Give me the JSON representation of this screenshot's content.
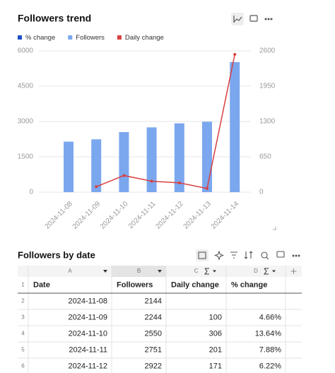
{
  "chart_data": {
    "type": "bar",
    "title": "Followers trend",
    "categories": [
      "2024-11-08",
      "2024-11-09",
      "2024-11-10",
      "2024-11-11",
      "2024-11-12",
      "2024-11-13",
      "2024-11-14"
    ],
    "series": [
      {
        "name": "% change",
        "color": "#1f4fc4",
        "values": [
          null,
          null,
          null,
          null,
          null,
          null,
          null
        ]
      },
      {
        "name": "Followers",
        "color": "#7ba7ee",
        "values": [
          2144,
          2244,
          2550,
          2751,
          2922,
          2990,
          5525
        ]
      },
      {
        "name": "Daily change",
        "color": "#d94040",
        "axis": "y2",
        "values": [
          null,
          100,
          306,
          201,
          171,
          68,
          2535
        ]
      }
    ],
    "ylim": [
      0,
      6000
    ],
    "yticks": [
      0,
      1500,
      3000,
      4500,
      6000
    ],
    "y2lim": [
      0,
      2600
    ],
    "y2ticks": [
      0,
      650,
      1300,
      1950,
      2600
    ],
    "grid": true
  },
  "table": {
    "title": "Followers by date",
    "columns": [
      "A",
      "B",
      "C",
      "D"
    ],
    "row_numbers": [
      1,
      2,
      3,
      4,
      5,
      6
    ],
    "header": [
      "Date",
      "Followers",
      "Daily change",
      "% change"
    ],
    "rows": [
      [
        "2024-11-08",
        "2144",
        null,
        null
      ],
      [
        "2024-11-09",
        "2244",
        "100",
        "4.66%"
      ],
      [
        "2024-11-10",
        "2550",
        "306",
        "13.64%"
      ],
      [
        "2024-11-11",
        "2751",
        "201",
        "7.88%"
      ],
      [
        "2024-11-12",
        "2922",
        "171",
        "6.22%"
      ]
    ]
  }
}
